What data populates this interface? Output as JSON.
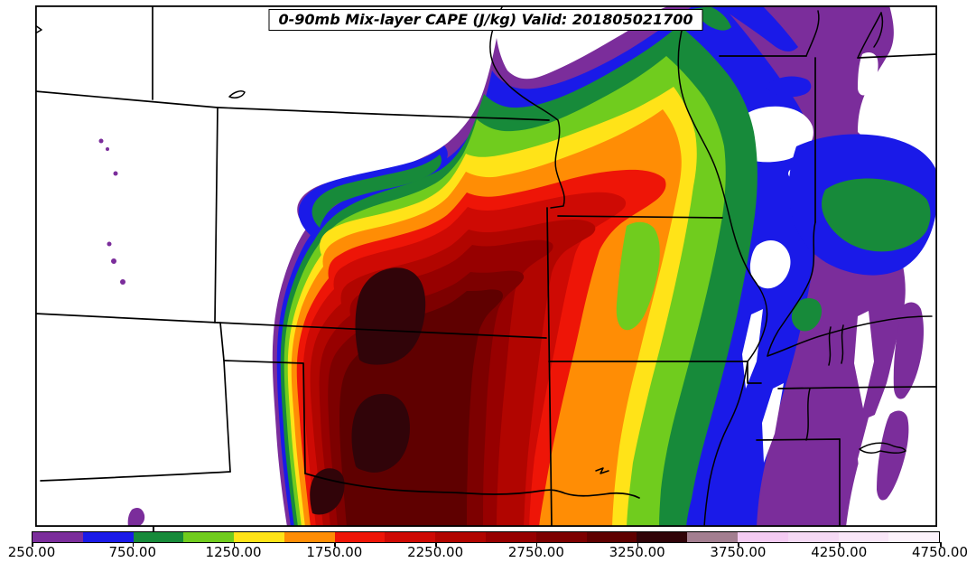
{
  "title": {
    "text": "0-90mb Mix-layer CAPE (J/kg) Valid: 201805021700"
  },
  "colorbar": {
    "tick_labels": [
      "250.00",
      "750.00",
      "1250.00",
      "1750.00",
      "2250.00",
      "2750.00",
      "3250.00",
      "3750.00",
      "4250.00",
      "4750.00"
    ],
    "levels": [
      250,
      500,
      750,
      1000,
      1250,
      1500,
      1750,
      2000,
      2250,
      2500,
      2750,
      3000,
      3250,
      3500,
      3750,
      4000,
      4250,
      4500,
      4750
    ],
    "segment_colors": [
      "#7B2D9B",
      "#1A1AE8",
      "#178A3A",
      "#70CC1E",
      "#FFE318",
      "#FF8D05",
      "#EE1507",
      "#CE0A04",
      "#B10500",
      "#970000",
      "#7D0000",
      "#5F0000",
      "#310409",
      "#A37E90",
      "#F4CBF2",
      "#F5D9F4",
      "#F9E6F8",
      "#FCF2FB"
    ]
  },
  "map": {
    "background_color": "#ffffff",
    "frame_color": "#000000",
    "state_line_color": "#000000"
  },
  "chart_data": {
    "type": "filled-contour-map",
    "title": "0-90mb Mix-layer CAPE (J/kg) Valid: 201805021700",
    "variable": "0-90mb Mix-layer CAPE",
    "units": "J/kg",
    "valid_time": "201805021700",
    "contour_levels": [
      250,
      500,
      750,
      1000,
      1250,
      1500,
      1750,
      2000,
      2250,
      2500,
      2750,
      3000,
      3250,
      3500,
      3750,
      4000,
      4250,
      4500,
      4750
    ],
    "palette": [
      "#7B2D9B",
      "#1A1AE8",
      "#178A3A",
      "#70CC1E",
      "#FFE318",
      "#FF8D05",
      "#EE1507",
      "#CE0A04",
      "#B10500",
      "#970000",
      "#7D0000",
      "#5F0000",
      "#310409",
      "#A37E90",
      "#F4CBF2",
      "#F5D9F4",
      "#F9E6F8",
      "#FCF2FB"
    ],
    "colorbar_ticks": [
      "250.00",
      "750.00",
      "1250.00",
      "1750.00",
      "2250.00",
      "2750.00",
      "3250.00",
      "3750.00",
      "4250.00",
      "4750.00"
    ],
    "legend_position": "bottom"
  }
}
